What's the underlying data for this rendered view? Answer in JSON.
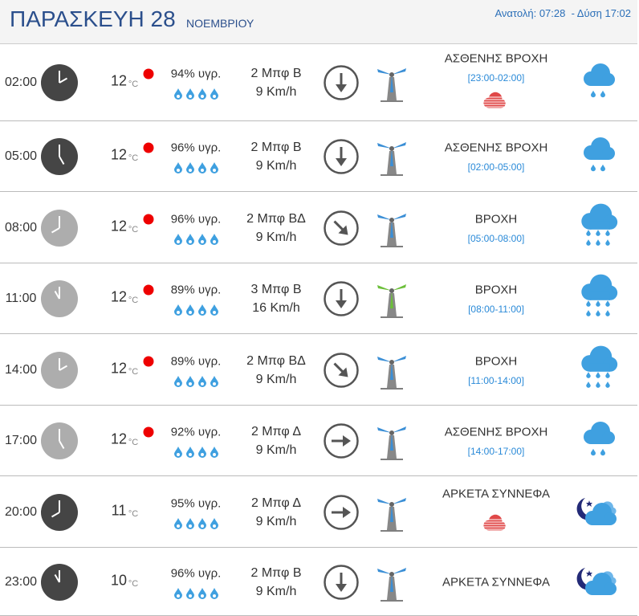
{
  "header": {
    "title": "ΠΑΡΑΣΚΕΥΗ 28",
    "subtitle": "ΝΟΕΜΒΡΙΟΥ",
    "sun": "Ανατολή: 07:28  - Δύση 17:02"
  },
  "rows": [
    {
      "time": "02:00",
      "temp": "12",
      "unit": "°C",
      "humidity": "94% υγρ.",
      "wind": "2 Μπφ Β",
      "speed": "9 Km/h",
      "condition": "ΑΣΘΕΝΗΣ ΒΡΟΧΗ",
      "period": "[23:00-02:00]"
    },
    {
      "time": "05:00",
      "temp": "12",
      "unit": "°C",
      "humidity": "96% υγρ.",
      "wind": "2 Μπφ Β",
      "speed": "9 Km/h",
      "condition": "ΑΣΘΕΝΗΣ ΒΡΟΧΗ",
      "period": "[02:00-05:00]"
    },
    {
      "time": "08:00",
      "temp": "12",
      "unit": "°C",
      "humidity": "96% υγρ.",
      "wind": "2 Μπφ ΒΔ",
      "speed": "9 Km/h",
      "condition": "ΒΡΟΧΗ",
      "period": "[05:00-08:00]"
    },
    {
      "time": "11:00",
      "temp": "12",
      "unit": "°C",
      "humidity": "89% υγρ.",
      "wind": "3 Μπφ Β",
      "speed": "16 Km/h",
      "condition": "ΒΡΟΧΗ",
      "period": "[08:00-11:00]"
    },
    {
      "time": "14:00",
      "temp": "12",
      "unit": "°C",
      "humidity": "89% υγρ.",
      "wind": "2 Μπφ ΒΔ",
      "speed": "9 Km/h",
      "condition": "ΒΡΟΧΗ",
      "period": "[11:00-14:00]"
    },
    {
      "time": "17:00",
      "temp": "12",
      "unit": "°C",
      "humidity": "92% υγρ.",
      "wind": "2 Μπφ Δ",
      "speed": "9 Km/h",
      "condition": "ΑΣΘΕΝΗΣ ΒΡΟΧΗ",
      "period": "[14:00-17:00]"
    },
    {
      "time": "20:00",
      "temp": "11",
      "unit": "°C",
      "humidity": "95% υγρ.",
      "wind": "2 Μπφ Δ",
      "speed": "9 Km/h",
      "condition": "ΑΡΚΕΤΑ ΣΥΝΝΕΦΑ"
    },
    {
      "time": "23:00",
      "temp": "10",
      "unit": "°C",
      "humidity": "96% υγρ.",
      "wind": "2 Μπφ Β",
      "speed": "9 Km/h",
      "condition": "ΑΡΚΕΤΑ ΣΥΝΝΕΦΑ"
    }
  ]
}
